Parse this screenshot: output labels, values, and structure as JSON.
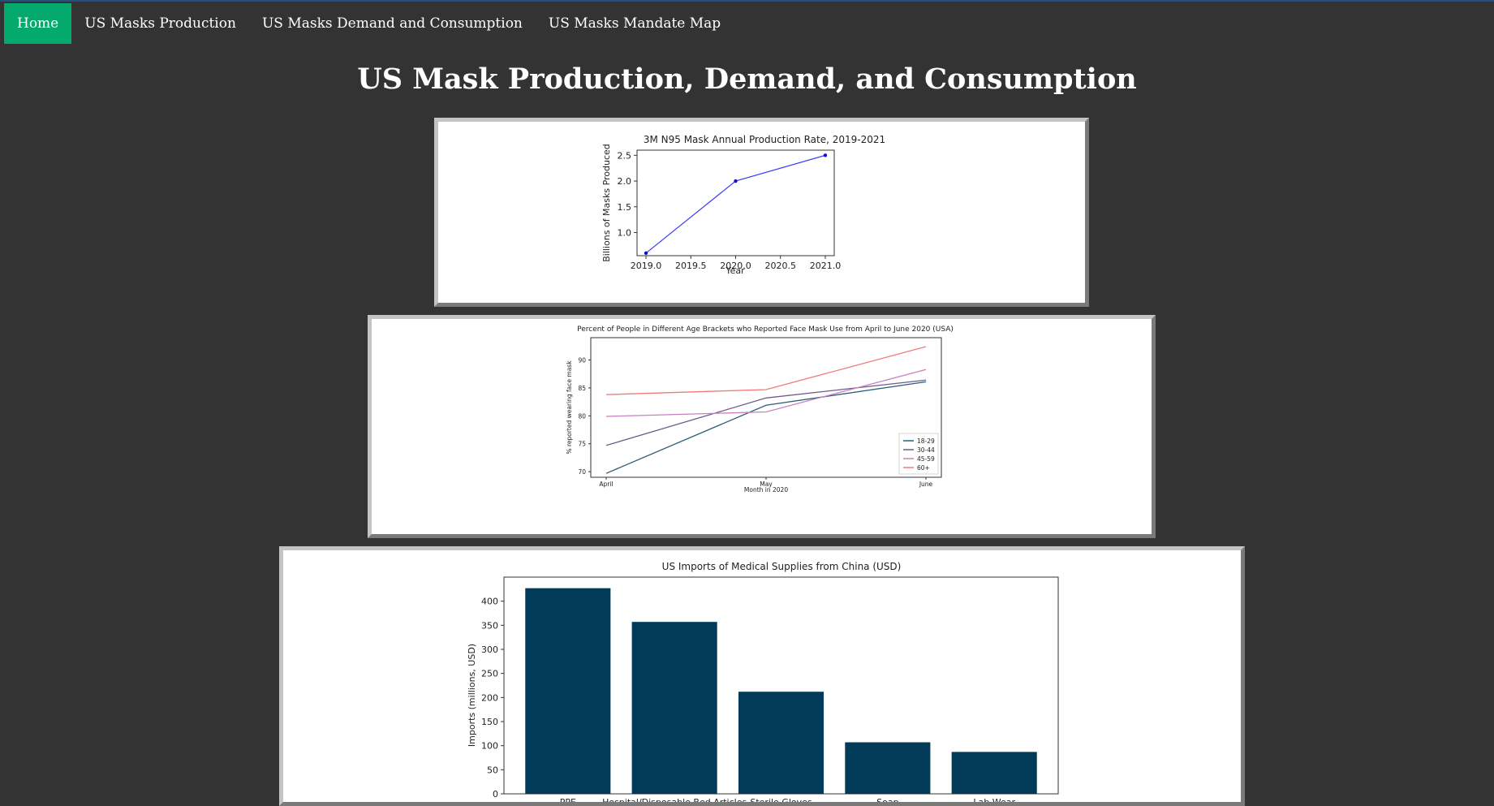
{
  "nav": {
    "items": [
      {
        "label": "Home",
        "active": true
      },
      {
        "label": "US Masks Production",
        "active": false
      },
      {
        "label": "US Masks Demand and Consumption",
        "active": false
      },
      {
        "label": "US Masks Mandate Map",
        "active": false
      }
    ]
  },
  "page": {
    "title": "US Mask Production, Demand, and Consumption"
  },
  "colors": {
    "background": "#333333",
    "nav_active": "#04aa6d",
    "bar_color": "#023b5a"
  },
  "chart_data": [
    {
      "type": "line",
      "title": "3M N95 Mask Annual Production Rate, 2019-2021",
      "xlabel": "Year",
      "ylabel": "Billions of Masks Produced",
      "x": [
        2019,
        2020,
        2021
      ],
      "series": [
        {
          "values": [
            0.6,
            2.0,
            2.5
          ],
          "color": "#3a3aff"
        }
      ],
      "xlim": [
        2018.9,
        2021.1
      ],
      "ylim": [
        0.55,
        2.6
      ],
      "xticks": [
        "2019.0",
        "2019.5",
        "2020.0",
        "2020.5",
        "2021.0"
      ],
      "yticks": [
        "1.0",
        "1.5",
        "2.0",
        "2.5"
      ],
      "grid": false
    },
    {
      "type": "line",
      "title": "Percent of People in Different Age Brackets who Reported Face Mask Use from April to June 2020 (USA)",
      "xlabel": "Month in 2020",
      "ylabel": "% reported wearing face mask",
      "categories": [
        "April",
        "May",
        "June"
      ],
      "series": [
        {
          "name": "18-29",
          "values": [
            69.7,
            81.9,
            86.1
          ],
          "color": "#2b5f7a"
        },
        {
          "name": "30-44",
          "values": [
            74.7,
            83.2,
            86.4
          ],
          "color": "#6e5a8e"
        },
        {
          "name": "45-59",
          "values": [
            79.9,
            80.7,
            88.3
          ],
          "color": "#c97fc0"
        },
        {
          "name": "60+",
          "values": [
            83.8,
            84.7,
            92.4
          ],
          "color": "#f07a7a"
        }
      ],
      "ylim": [
        69,
        94
      ],
      "yticks": [
        "70",
        "75",
        "80",
        "85",
        "90"
      ],
      "legend": "bottom-right",
      "grid": false
    },
    {
      "type": "bar",
      "title": "US Imports of Medical Supplies from China (USD)",
      "ylabel": "Imports (millions, USD)",
      "categories": [
        "PPE",
        "Hospital/Disposable Bed Articles",
        "Sterile Gloves",
        "Soap",
        "Lab Wear"
      ],
      "values": [
        427,
        357,
        212,
        107,
        87
      ],
      "yticks": [
        "0",
        "50",
        "100",
        "150",
        "200",
        "250",
        "300",
        "350",
        "400"
      ],
      "ylim": [
        0,
        450
      ],
      "grid": false
    }
  ]
}
